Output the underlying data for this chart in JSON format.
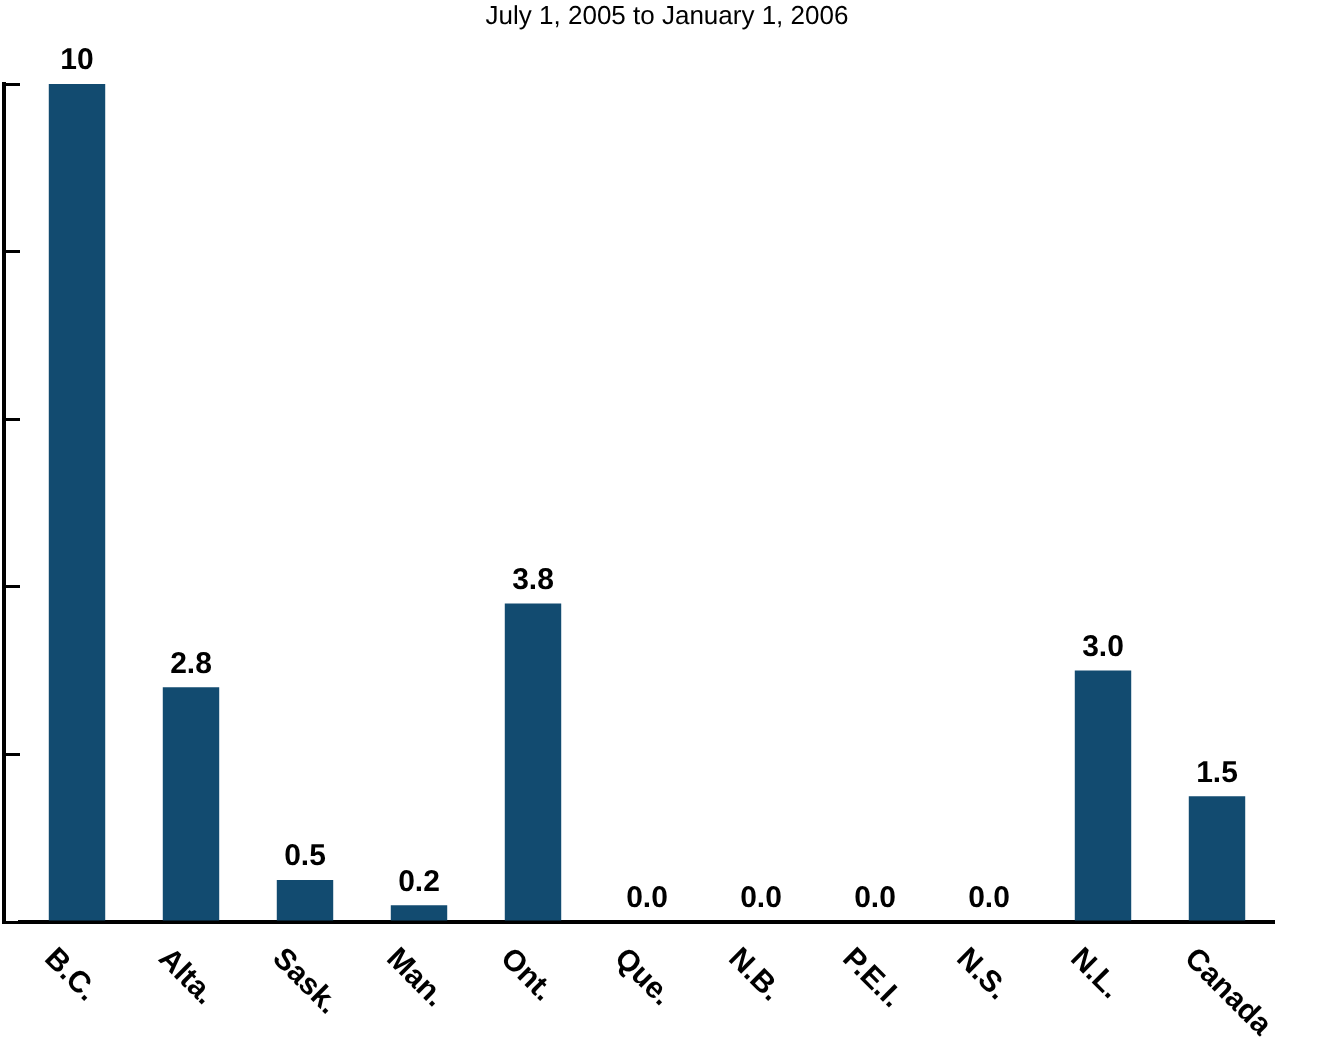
{
  "chart_data": {
    "type": "bar",
    "subtitle": "July 1, 2005 to January 1, 2006",
    "categories": [
      "B.C.",
      "Alta.",
      "Sask.",
      "Man.",
      "Ont.",
      "Que.",
      "N.B.",
      "P.E.I.",
      "N.S.",
      "N.L.",
      "Canada"
    ],
    "values": [
      10,
      2.8,
      0.5,
      0.2,
      3.8,
      0.0,
      0.0,
      0.0,
      0.0,
      3.0,
      1.5
    ],
    "value_labels": [
      "10",
      "2.8",
      "0.5",
      "0.2",
      "3.8",
      "0.0",
      "0.0",
      "0.0",
      "0.0",
      "3.0",
      "1.5"
    ],
    "color": "#124b70",
    "ylim": [
      0,
      10
    ],
    "yticks": [
      {
        "value": 0,
        "label": null
      },
      {
        "value": 2,
        "label": null
      },
      {
        "value": 4,
        "label": null
      },
      {
        "value": 6,
        "label": null
      },
      {
        "value": 8,
        "label": null
      },
      {
        "value": 10,
        "label": null
      }
    ],
    "tick_labels": "x",
    "grid": false,
    "legend": false
  }
}
